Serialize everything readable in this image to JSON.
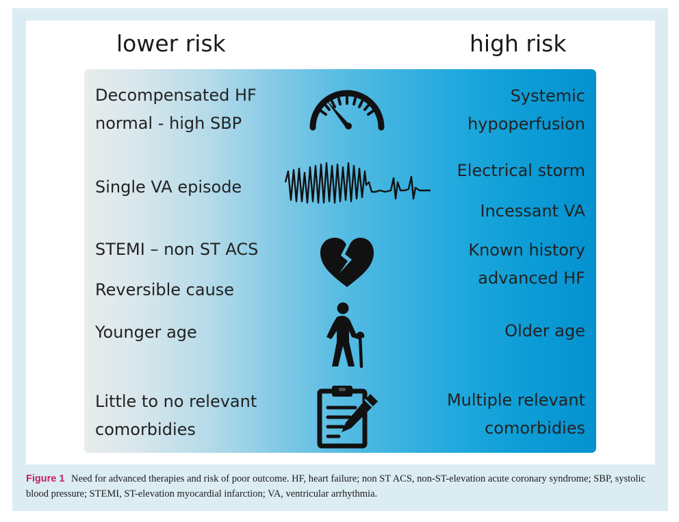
{
  "headings": {
    "low": "lower risk",
    "high": "high risk"
  },
  "rows": {
    "row1": {
      "low_lines": [
        "Decompensated HF",
        "normal - high SBP"
      ],
      "high_lines": [
        "Systemic",
        "hypoperfusion"
      ],
      "icon": "speedometer-icon"
    },
    "row2": {
      "low_lines": [
        "Single VA episode"
      ],
      "high_lines": [
        "Electrical storm",
        "Incessant VA"
      ],
      "icon": "ecg-arrhythmia-icon"
    },
    "row3": {
      "low_lines": [
        "STEMI – non ST ACS",
        "Reversible cause"
      ],
      "high_lines": [
        "Known history",
        "advanced HF"
      ],
      "icon": "broken-heart-icon"
    },
    "row4": {
      "low_lines": [
        "Younger age"
      ],
      "high_lines": [
        "Older age"
      ],
      "icon": "elderly-person-icon"
    },
    "row5": {
      "low_lines": [
        "Little to no relevant",
        "comorbidies"
      ],
      "high_lines": [
        "Multiple relevant",
        "comorbidies"
      ],
      "icon": "clipboard-pencil-icon"
    }
  },
  "caption": {
    "label": "Figure 1",
    "text": "Need for advanced therapies and risk of poor outcome. HF, heart failure; non ST ACS, non-ST-elevation acute coronary syndrome; SBP, systolic blood pressure; STEMI, ST-elevation myocardial infarction; VA, ventricular arrhythmia."
  },
  "colors": {
    "gradient_start": "#e8ecec",
    "gradient_end": "#0592d0",
    "caption_label": "#c0245c",
    "frame": "#dcecf3",
    "icon": "#111111"
  }
}
